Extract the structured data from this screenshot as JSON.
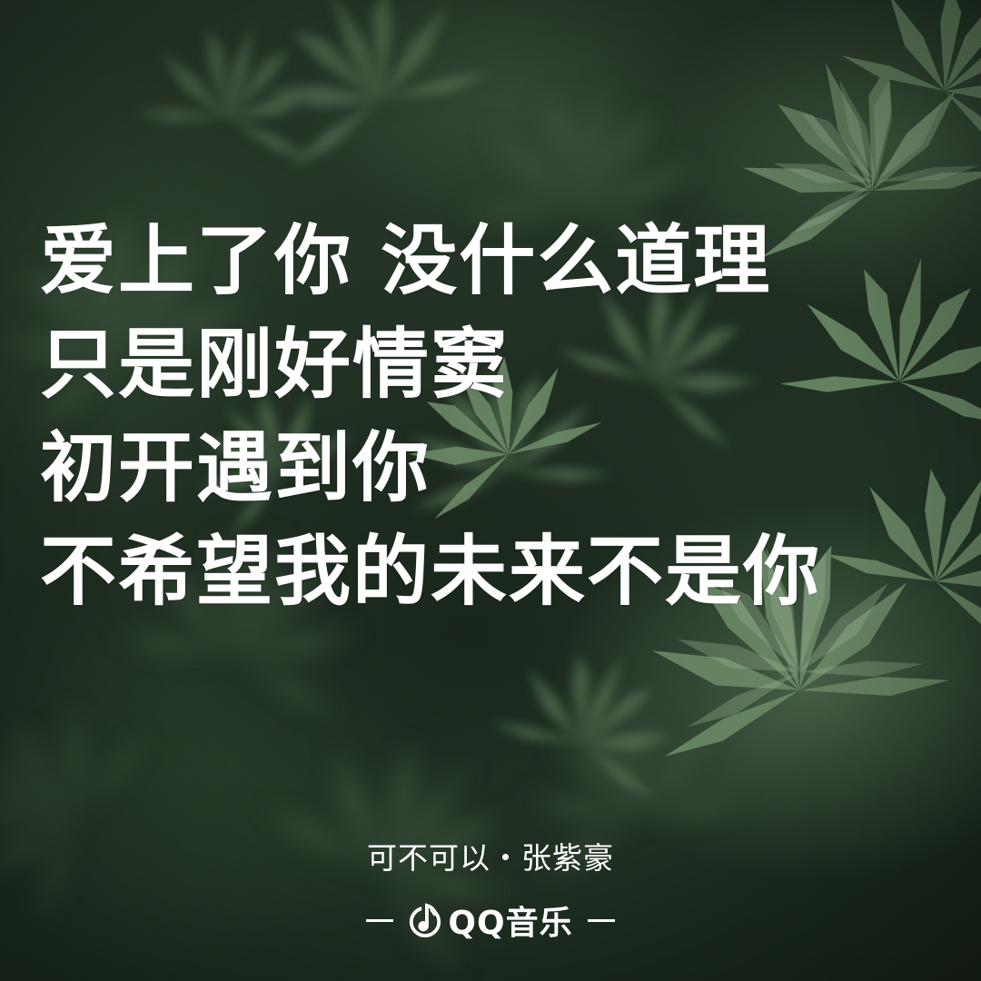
{
  "lyrics": {
    "lines": [
      "爱上了你 没什么道理",
      "只是刚好情窦",
      "初开遇到你",
      "不希望我的未来不是你"
    ]
  },
  "song": {
    "info": "可不可以・张紫豪"
  },
  "brand": {
    "name": "QQ音乐",
    "logo_icon": "qq-music-note-icon"
  },
  "colors": {
    "text": "#ffffff",
    "background": "#1f2e21",
    "leaf": "#5d7a5a"
  }
}
